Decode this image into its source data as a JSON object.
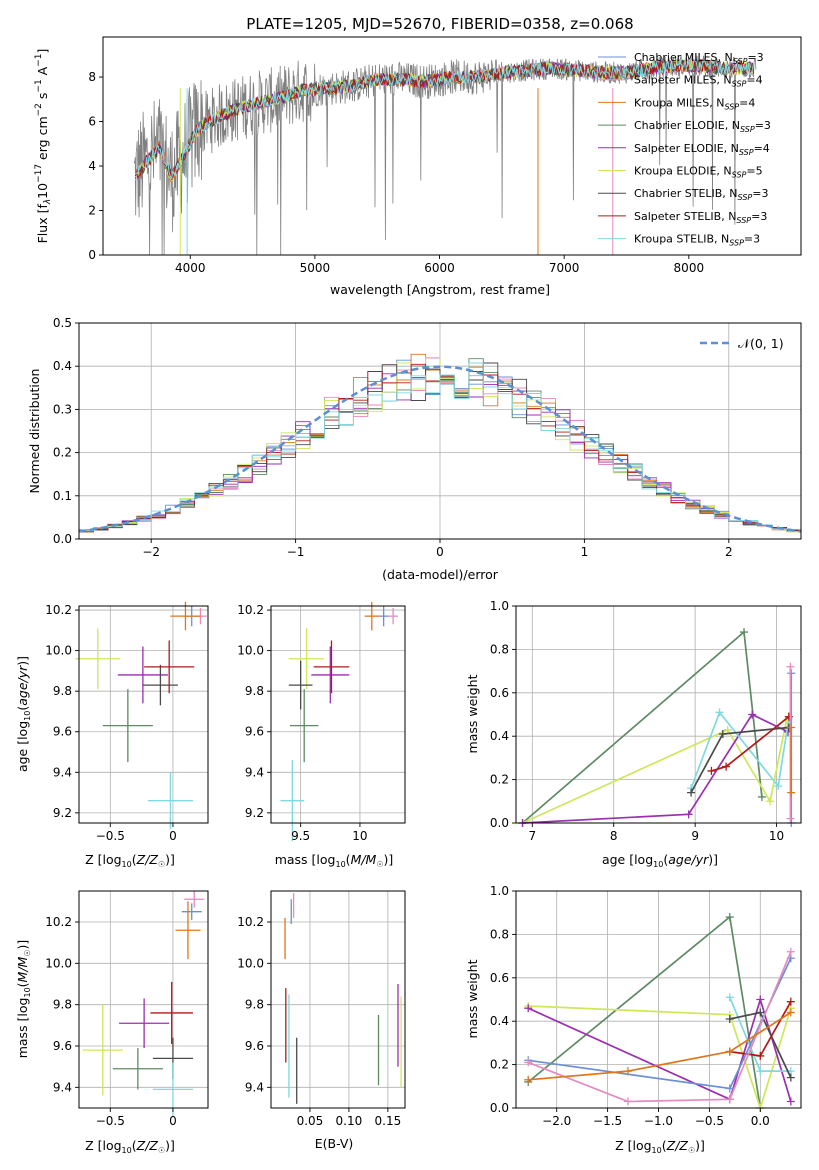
{
  "chart_data": [
    {
      "type": "line",
      "title": "PLATE=1205, MJD=52670, FIBERID=0358, z=0.068",
      "xlabel": "wavelength [Angstrom, rest frame]",
      "ylabel_parts": [
        "Flux [f",
        "λ",
        "10",
        "−17",
        " erg cm",
        "−2",
        " s",
        "−1",
        " A",
        "−1",
        "]"
      ],
      "xlim": [
        3300,
        8900
      ],
      "ylim": [
        0,
        9.8
      ],
      "xticks": [
        4000,
        5000,
        6000,
        7000,
        8000
      ],
      "yticks": [
        0,
        2,
        4,
        6,
        8
      ],
      "grid": false,
      "legend_position": "right",
      "spectrum_envelope": {
        "x": [
          3550,
          3650,
          3750,
          3850,
          3950,
          4050,
          4150,
          4300,
          4500,
          4700,
          4900,
          5100,
          5300,
          5500,
          5700,
          5900,
          6100,
          6300,
          6500,
          6700,
          6900,
          7100,
          7300,
          7500,
          7700,
          7900,
          8100,
          8300,
          8500
        ],
        "y": [
          3.4,
          4.2,
          4.8,
          3.5,
          4.5,
          5.6,
          6.0,
          6.4,
          6.8,
          7.0,
          7.4,
          7.5,
          7.6,
          7.9,
          7.9,
          7.8,
          8.0,
          8.0,
          8.2,
          8.3,
          8.4,
          8.3,
          8.2,
          8.2,
          8.4,
          8.5,
          8.5,
          8.4,
          8.4
        ]
      },
      "series": [
        {
          "label": "Chabrier MILES, N",
          "sub": "SSP",
          "suffix": "=3",
          "color": "#6b8fd6"
        },
        {
          "label": "Salpeter MILES, N",
          "sub": "SSP",
          "suffix": "=4",
          "color": "#e58ac0"
        },
        {
          "label": "Kroupa MILES, N",
          "sub": "SSP",
          "suffix": "=4",
          "color": "#e0761c"
        },
        {
          "label": "Chabrier ELODIE, N",
          "sub": "SSP",
          "suffix": "=3",
          "color": "#5e8a64"
        },
        {
          "label": "Salpeter ELODIE, N",
          "sub": "SSP",
          "suffix": "=4",
          "color": "#9a2fb0"
        },
        {
          "label": "Kroupa ELODIE, N",
          "sub": "SSP",
          "suffix": "=5",
          "color": "#cde85a"
        },
        {
          "label": "Chabrier STELIB, N",
          "sub": "SSP",
          "suffix": "=3",
          "color": "#4a4a4a"
        },
        {
          "label": "Salpeter STELIB, N",
          "sub": "SSP",
          "suffix": "=3",
          "color": "#b21a1a"
        },
        {
          "label": "Kroupa STELIB, N",
          "sub": "SSP",
          "suffix": "=3",
          "color": "#7fd9e0"
        }
      ]
    },
    {
      "type": "line",
      "xlabel": "(data-model)/error",
      "ylabel": "Normed distribution",
      "xlim": [
        -2.5,
        2.5
      ],
      "ylim": [
        0,
        0.5
      ],
      "xticks": [
        -2,
        -1,
        0,
        1,
        2
      ],
      "yticks": [
        0.0,
        0.1,
        0.2,
        0.3,
        0.4,
        0.5
      ],
      "grid": true,
      "legend_position": "top-right",
      "reference_label": "𝒩(0, 1)",
      "reference_color": "#5b8fd6",
      "bin_width": 0.1
    },
    {
      "type": "scatter",
      "xlabel": "Z [log10(Z/Z☉)]",
      "ylabel": "age  [log10(age/yr)]",
      "xlim": [
        -0.75,
        0.28
      ],
      "ylim": [
        9.15,
        10.22
      ],
      "xticks": [
        -0.5,
        0.0
      ],
      "yticks": [
        9.2,
        9.4,
        9.6,
        9.8,
        10.0,
        10.2
      ]
    },
    {
      "type": "scatter",
      "xlabel": "mass [log10(M/M☉)]",
      "ylabel": "",
      "xlim": [
        9.25,
        10.38
      ],
      "ylim": [
        9.15,
        10.22
      ],
      "xticks": [
        9.5,
        10.0
      ],
      "yticks": [
        9.2,
        9.4,
        9.6,
        9.8,
        10.0,
        10.2
      ]
    },
    {
      "type": "line",
      "xlabel": "age  [log10(age/yr)]",
      "ylabel": "mass weight",
      "xlim": [
        6.8,
        10.3
      ],
      "ylim": [
        0,
        1.0
      ],
      "xticks": [
        7,
        8,
        9,
        10
      ],
      "yticks": [
        0.0,
        0.2,
        0.4,
        0.6,
        0.8,
        1.0
      ],
      "grid": true
    },
    {
      "type": "scatter",
      "xlabel": "Z [log10(Z/Z☉)]",
      "ylabel": "mass [log10(M/M☉)]",
      "xlim": [
        -0.75,
        0.28
      ],
      "ylim": [
        9.3,
        10.35
      ],
      "xticks": [
        -0.5,
        0.0
      ],
      "yticks": [
        9.4,
        9.6,
        9.8,
        10.0,
        10.2
      ]
    },
    {
      "type": "scatter",
      "xlabel": "E(B-V)",
      "ylabel": "",
      "xlim": [
        0.0,
        0.172
      ],
      "ylim": [
        9.3,
        10.35
      ],
      "xticks": [
        0.05,
        0.1,
        0.15
      ],
      "xtick_labels": [
        "0.05",
        "0.10",
        "0.15"
      ],
      "yticks": [
        9.4,
        9.6,
        9.8,
        10.0,
        10.2
      ]
    },
    {
      "type": "line",
      "xlabel": "Z [log10(Z/Z☉)]",
      "ylabel": "mass weight",
      "xlim": [
        -2.4,
        0.4
      ],
      "ylim": [
        0,
        1.0
      ],
      "xticks": [
        -2.0,
        -1.5,
        -1.0,
        -0.5,
        0.0
      ],
      "xtick_labels": [
        "−2.0",
        "−1.5",
        "−1.0",
        "−0.5",
        "0.0"
      ],
      "yticks": [
        0.0,
        0.2,
        0.4,
        0.6,
        0.8,
        1.0
      ],
      "grid": true
    }
  ],
  "errorbars_ageZ": [
    {
      "c": "#6b8fd6",
      "x": 0.15,
      "xe": 0.06,
      "y": 10.17,
      "ye": 0.05
    },
    {
      "c": "#e58ac0",
      "x": 0.22,
      "xe": 0.05,
      "y": 10.17,
      "ye": 0.04
    },
    {
      "c": "#e0761c",
      "x": 0.1,
      "xe": 0.12,
      "y": 10.17,
      "ye": 0.07
    },
    {
      "c": "#5e8a64",
      "x": -0.36,
      "xe": 0.2,
      "y": 9.63,
      "ye": 0.18
    },
    {
      "c": "#9a2fb0",
      "x": -0.24,
      "xe": 0.2,
      "y": 9.88,
      "ye": 0.14
    },
    {
      "c": "#cde85a",
      "x": -0.6,
      "xe": 0.18,
      "y": 9.96,
      "ye": 0.15
    },
    {
      "c": "#4a4a4a",
      "x": -0.1,
      "xe": 0.14,
      "y": 9.83,
      "ye": 0.1
    },
    {
      "c": "#b21a1a",
      "x": -0.03,
      "xe": 0.2,
      "y": 9.92,
      "ye": 0.13
    },
    {
      "c": "#7fd9e0",
      "x": -0.02,
      "xe": 0.18,
      "y": 9.26,
      "ye": 0.14
    }
  ],
  "errorbars_ageM": [
    {
      "c": "#6b8fd6",
      "x": 10.2,
      "xe": 0.04,
      "y": 10.17,
      "ye": 0.05
    },
    {
      "c": "#e58ac0",
      "x": 10.28,
      "xe": 0.04,
      "y": 10.17,
      "ye": 0.04
    },
    {
      "c": "#e0761c",
      "x": 10.1,
      "xe": 0.06,
      "y": 10.17,
      "ye": 0.07
    },
    {
      "c": "#5e8a64",
      "x": 9.53,
      "xe": 0.12,
      "y": 9.63,
      "ye": 0.18
    },
    {
      "c": "#9a2fb0",
      "x": 9.75,
      "xe": 0.16,
      "y": 9.88,
      "ye": 0.14
    },
    {
      "c": "#cde85a",
      "x": 9.55,
      "xe": 0.15,
      "y": 9.96,
      "ye": 0.15
    },
    {
      "c": "#4a4a4a",
      "x": 9.5,
      "xe": 0.1,
      "y": 9.83,
      "ye": 0.12
    },
    {
      "c": "#b21a1a",
      "x": 9.76,
      "xe": 0.15,
      "y": 9.92,
      "ye": 0.13
    },
    {
      "c": "#7fd9e0",
      "x": 9.43,
      "xe": 0.1,
      "y": 9.26,
      "ye": 0.2
    }
  ],
  "errorbars_MZ": [
    {
      "c": "#6b8fd6",
      "x": 0.15,
      "xe": 0.08,
      "y": 10.25,
      "ye": 0.04
    },
    {
      "c": "#e58ac0",
      "x": 0.17,
      "xe": 0.08,
      "y": 10.31,
      "ye": 0.04
    },
    {
      "c": "#e0761c",
      "x": 0.12,
      "xe": 0.1,
      "y": 10.16,
      "ye": 0.14
    },
    {
      "c": "#5e8a64",
      "x": -0.28,
      "xe": 0.2,
      "y": 9.49,
      "ye": 0.1
    },
    {
      "c": "#9a2fb0",
      "x": -0.23,
      "xe": 0.2,
      "y": 9.71,
      "ye": 0.12
    },
    {
      "c": "#cde85a",
      "x": -0.56,
      "xe": 0.16,
      "y": 9.58,
      "ye": 0.22
    },
    {
      "c": "#4a4a4a",
      "x": 0.0,
      "xe": 0.16,
      "y": 9.54,
      "ye": 0.1
    },
    {
      "c": "#b21a1a",
      "x": -0.01,
      "xe": 0.17,
      "y": 9.76,
      "ye": 0.15
    },
    {
      "c": "#7fd9e0",
      "x": 0.0,
      "xe": 0.16,
      "y": 9.39,
      "ye": 0.13
    }
  ],
  "errorbars_MEBV": [
    {
      "c": "#6b8fd6",
      "x": 0.026,
      "xe": 0.0,
      "y": 10.25,
      "ye": 0.06
    },
    {
      "c": "#e58ac0",
      "x": 0.029,
      "xe": 0.0,
      "y": 10.28,
      "ye": 0.06
    },
    {
      "c": "#e0761c",
      "x": 0.018,
      "xe": 0.0,
      "y": 10.12,
      "ye": 0.1
    },
    {
      "c": "#5e8a64",
      "x": 0.138,
      "xe": 0.0,
      "y": 9.58,
      "ye": 0.17
    },
    {
      "c": "#9a2fb0",
      "x": 0.163,
      "xe": 0.0,
      "y": 9.7,
      "ye": 0.2
    },
    {
      "c": "#cde85a",
      "x": 0.167,
      "xe": 0.0,
      "y": 9.62,
      "ye": 0.22
    },
    {
      "c": "#4a4a4a",
      "x": 0.033,
      "xe": 0.0,
      "y": 9.48,
      "ye": 0.16
    },
    {
      "c": "#b21a1a",
      "x": 0.019,
      "xe": 0.0,
      "y": 9.7,
      "ye": 0.18
    },
    {
      "c": "#7fd9e0",
      "x": 0.023,
      "xe": 0.0,
      "y": 9.6,
      "ye": 0.25
    }
  ],
  "weights_age": [
    {
      "c": "#5e8a64",
      "pts": [
        [
          6.88,
          0.0
        ],
        [
          9.6,
          0.88
        ],
        [
          9.82,
          0.12
        ]
      ]
    },
    {
      "c": "#cde85a",
      "pts": [
        [
          6.88,
          0.0
        ],
        [
          9.4,
          0.43
        ],
        [
          9.92,
          0.1
        ],
        [
          10.12,
          0.47
        ]
      ]
    },
    {
      "c": "#9a2fb0",
      "pts": [
        [
          6.88,
          0.0
        ],
        [
          8.92,
          0.04
        ],
        [
          9.7,
          0.5
        ],
        [
          10.14,
          0.42
        ]
      ]
    },
    {
      "c": "#7fd9e0",
      "pts": [
        [
          8.95,
          0.16
        ],
        [
          9.3,
          0.51
        ],
        [
          10.02,
          0.17
        ],
        [
          10.15,
          0.48
        ]
      ]
    },
    {
      "c": "#4a4a4a",
      "pts": [
        [
          8.95,
          0.14
        ],
        [
          9.34,
          0.41
        ],
        [
          10.15,
          0.44
        ]
      ]
    },
    {
      "c": "#b21a1a",
      "pts": [
        [
          9.2,
          0.24
        ],
        [
          9.38,
          0.26
        ],
        [
          10.15,
          0.49
        ]
      ]
    },
    {
      "c": "#6b8fd6",
      "pts": [
        [
          10.18,
          0.0
        ],
        [
          10.18,
          0.69
        ]
      ]
    },
    {
      "c": "#e58ac0",
      "pts": [
        [
          10.17,
          0.02
        ],
        [
          10.17,
          0.72
        ]
      ]
    },
    {
      "c": "#e0761c",
      "pts": [
        [
          10.18,
          0.14
        ],
        [
          10.18,
          0.44
        ]
      ]
    }
  ],
  "weights_Z": [
    {
      "c": "#5e8a64",
      "pts": [
        [
          -2.28,
          0.12
        ],
        [
          -0.3,
          0.88
        ],
        [
          0.0,
          0.0
        ]
      ]
    },
    {
      "c": "#cde85a",
      "pts": [
        [
          -2.28,
          0.47
        ],
        [
          -0.3,
          0.43
        ],
        [
          0.0,
          0.0
        ],
        [
          0.3,
          0.46
        ]
      ]
    },
    {
      "c": "#9a2fb0",
      "pts": [
        [
          -2.28,
          0.46
        ],
        [
          -0.3,
          0.04
        ],
        [
          0.0,
          0.5
        ],
        [
          0.3,
          0.03
        ]
      ]
    },
    {
      "c": "#7fd9e0",
      "pts": [
        [
          -0.3,
          0.51
        ],
        [
          0.0,
          0.17
        ],
        [
          0.3,
          0.17
        ]
      ]
    },
    {
      "c": "#4a4a4a",
      "pts": [
        [
          -0.3,
          0.41
        ],
        [
          0.0,
          0.44
        ],
        [
          0.3,
          0.14
        ]
      ]
    },
    {
      "c": "#b21a1a",
      "pts": [
        [
          -0.3,
          0.26
        ],
        [
          0.0,
          0.24
        ],
        [
          0.3,
          0.49
        ]
      ]
    },
    {
      "c": "#6b8fd6",
      "pts": [
        [
          -2.28,
          0.22
        ],
        [
          -0.3,
          0.09
        ],
        [
          0.3,
          0.69
        ]
      ]
    },
    {
      "c": "#e58ac0",
      "pts": [
        [
          -2.28,
          0.21
        ],
        [
          -1.3,
          0.03
        ],
        [
          -0.3,
          0.04
        ],
        [
          0.3,
          0.72
        ]
      ]
    },
    {
      "c": "#e0761c",
      "pts": [
        [
          -2.28,
          0.13
        ],
        [
          -1.3,
          0.17
        ],
        [
          -0.3,
          0.26
        ],
        [
          0.3,
          0.44
        ]
      ]
    }
  ]
}
